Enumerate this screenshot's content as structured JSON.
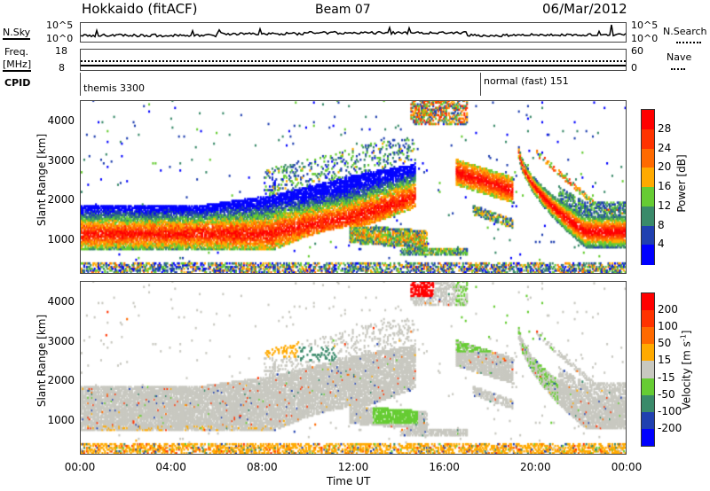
{
  "header": {
    "station": "Hokkaido (fitACF)",
    "beam": "Beam 07",
    "date": "06/Mar/2012"
  },
  "nsky_panel": {
    "left_label": "N.Sky",
    "right_label": "N.Search",
    "left_ticks": [
      "10^5",
      "10^0"
    ],
    "right_ticks": [
      "10^5",
      "10^0"
    ]
  },
  "freq_panel": {
    "left_label_1": "Freq.",
    "left_label_2": "[MHz]",
    "right_label": "Nave",
    "left_ticks": [
      "18",
      "8"
    ],
    "right_ticks": [
      "60",
      "0"
    ],
    "freq_mhz": 11,
    "nave": 26
  },
  "cpid": {
    "label": "CPID",
    "segments": [
      {
        "name": "themis 3300",
        "start_hour": 0
      },
      {
        "name": "normal (fast) 151",
        "start_hour": 18
      }
    ]
  },
  "chart_data": [
    {
      "type": "heatmap",
      "title": "Power",
      "xlabel": "Time UT",
      "ylabel": "Slant Range [km]",
      "xlim_hours": [
        0,
        24
      ],
      "ylim": [
        180,
        4510
      ],
      "yticks": [
        "1000",
        "2000",
        "3000",
        "4000"
      ],
      "colorbar": {
        "label": "Power [dB]",
        "ticks": [
          "4",
          "8",
          "12",
          "16",
          "20",
          "24",
          "28"
        ],
        "colors": [
          "#0000ff",
          "#2040b0",
          "#3a8a6a",
          "#66cc33",
          "#ffaa00",
          "#ff6a00",
          "#ff3300",
          "#ff0000"
        ]
      }
    },
    {
      "type": "heatmap",
      "title": "Velocity",
      "xlabel": "Time UT",
      "ylabel": "Slant Range [km]",
      "xlim_hours": [
        0,
        24
      ],
      "ylim": [
        180,
        4510
      ],
      "yticks": [
        "1000",
        "2000",
        "3000",
        "4000"
      ],
      "colorbar": {
        "label": "Velocity [m s-1]",
        "ticks": [
          "200",
          "100",
          "50",
          "15",
          "-15",
          "-50",
          "-100",
          "-200"
        ],
        "colors": [
          "#0000ff",
          "#2040b0",
          "#3a8a6a",
          "#66cc33",
          "#c8c8c0",
          "#ffaa00",
          "#ff6a00",
          "#ff3300",
          "#ff0000"
        ]
      }
    }
  ],
  "xaxis": {
    "ticks": [
      "00:00",
      "04:00",
      "08:00",
      "12:00",
      "16:00",
      "20:00",
      "00:00"
    ],
    "label": "Time UT"
  },
  "labels": {
    "slant_range": "Slant Range [km]",
    "power": "Power [dB]",
    "velocity": "Velocity [m s",
    "velocity_exp": "-1",
    "velocity_end": "]"
  }
}
